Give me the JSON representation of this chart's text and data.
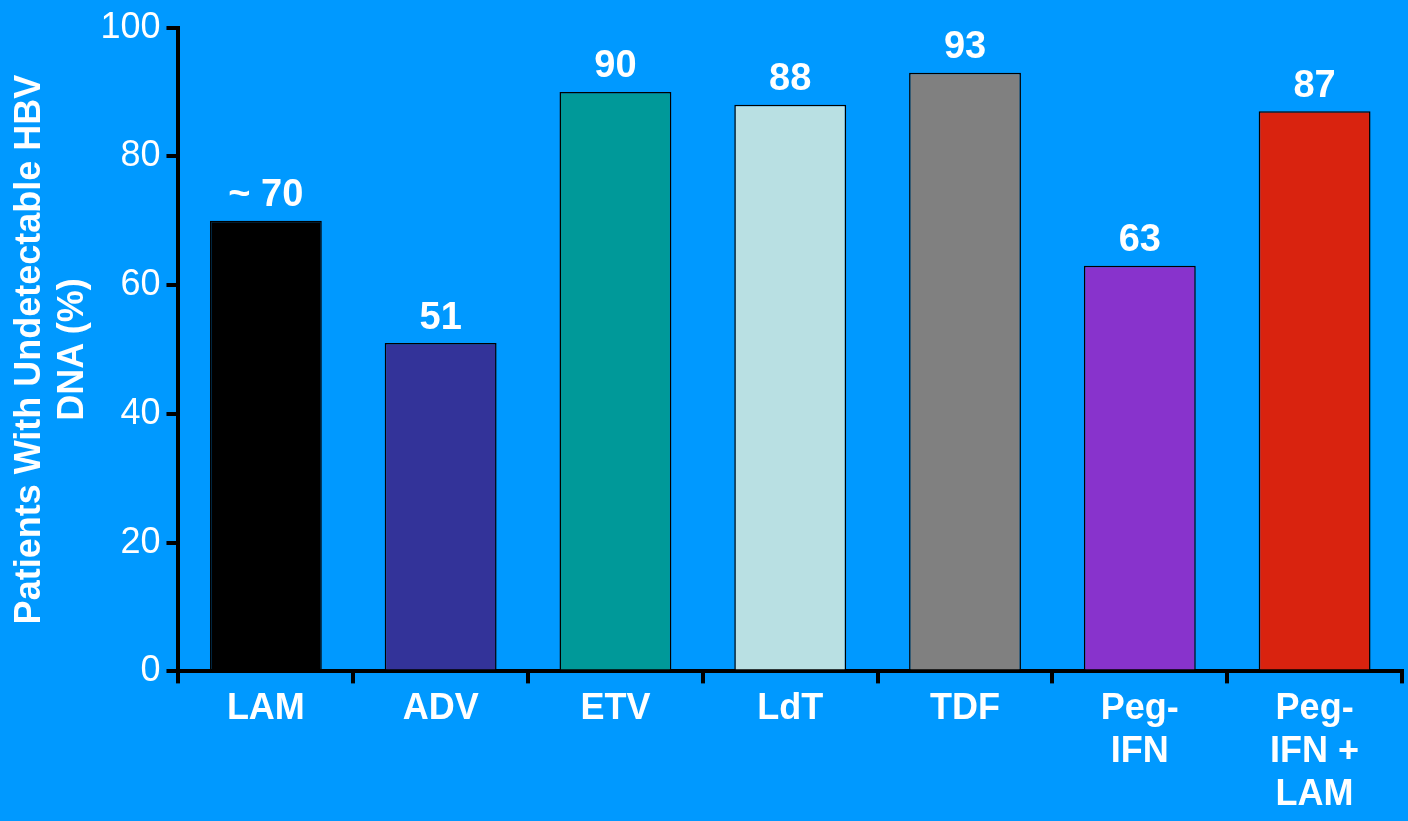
{
  "chart_data": {
    "type": "bar",
    "ylabel": "Patients With Undetectable HBV DNA (%)",
    "categories": [
      "LAM",
      "ADV",
      "ETV",
      "LdT",
      "TDF",
      "Peg-IFN",
      "Peg-IFN + LAM"
    ],
    "values": [
      70,
      51,
      90,
      88,
      93,
      63,
      87
    ],
    "value_labels": [
      "~ 70",
      "51",
      "90",
      "88",
      "93",
      "63",
      "87"
    ],
    "colors": [
      "#000000",
      "#333399",
      "#009999",
      "#b9e0e3",
      "#808080",
      "#8833cc",
      "#d9230f"
    ],
    "ylim": [
      0,
      100
    ],
    "yticks": [
      0,
      20,
      40,
      60,
      80,
      100
    ],
    "grid": false,
    "legend": false
  }
}
